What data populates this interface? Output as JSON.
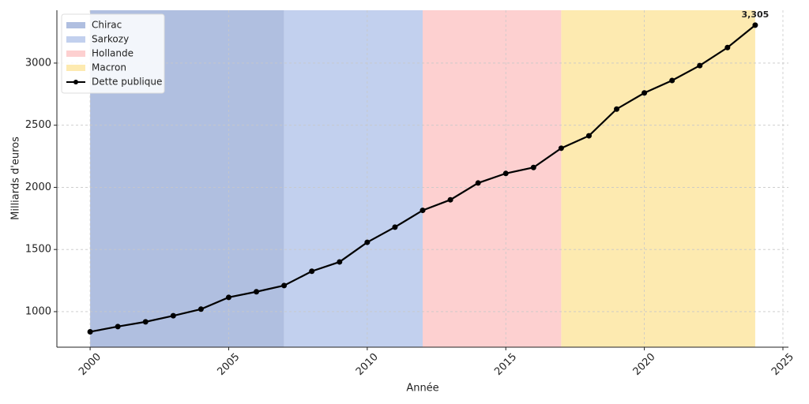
{
  "chart_data": {
    "type": "line",
    "x_label": "Année",
    "y_label": "Milliards d'euros",
    "x": [
      2000,
      2001,
      2002,
      2003,
      2004,
      2005,
      2006,
      2007,
      2008,
      2009,
      2010,
      2011,
      2012,
      2013,
      2014,
      2015,
      2016,
      2017,
      2018,
      2019,
      2020,
      2021,
      2022,
      2023,
      2024
    ],
    "series": [
      {
        "name": "Dette publique",
        "color": "#000000",
        "values": [
          838,
          880,
          918,
          967,
          1020,
          1115,
          1160,
          1210,
          1325,
          1400,
          1558,
          1680,
          1815,
          1900,
          2035,
          2112,
          2160,
          2315,
          2415,
          2630,
          2760,
          2860,
          2980,
          3125,
          3305
        ],
        "value_labels": [
          null,
          null,
          null,
          null,
          null,
          null,
          null,
          null,
          null,
          null,
          null,
          null,
          null,
          null,
          null,
          null,
          null,
          null,
          null,
          null,
          null,
          null,
          null,
          null,
          "3,305"
        ]
      }
    ],
    "spans": [
      {
        "name": "Chirac",
        "start": 2000,
        "end": 2007,
        "color": "#b0bfe0"
      },
      {
        "name": "Sarkozy",
        "start": 2007,
        "end": 2012,
        "color": "#c2d0ee"
      },
      {
        "name": "Hollande",
        "start": 2012,
        "end": 2017,
        "color": "#fdd0d0"
      },
      {
        "name": "Macron",
        "start": 2017,
        "end": 2024,
        "color": "#fdeab0"
      }
    ],
    "xlim": [
      1998.8,
      2025.2
    ],
    "xticks": [
      2000,
      2005,
      2010,
      2015,
      2020,
      2025
    ],
    "ylim": [
      714,
      3425
    ],
    "yticks": [
      1000,
      1500,
      2000,
      2500,
      3000
    ],
    "grid": true,
    "legend": "upper left"
  }
}
